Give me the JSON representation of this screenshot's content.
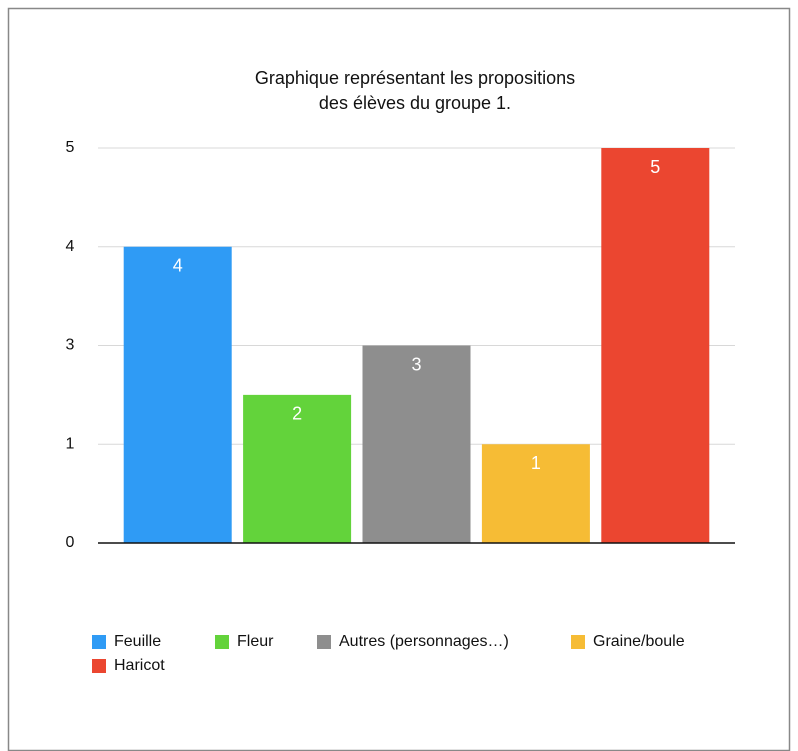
{
  "chart_data": {
    "type": "bar",
    "title": [
      "Graphique représentant les propositions",
      "des élèves du groupe 1."
    ],
    "categories": [
      "Feuille",
      "Fleur",
      "Autres (personnages…)",
      "Graine/boule",
      "Haricot"
    ],
    "values": [
      4,
      2,
      3,
      1,
      5
    ],
    "colors": [
      "#2f9bf5",
      "#63d33b",
      "#8e8e8e",
      "#f6bc35",
      "#eb4630"
    ],
    "ylim": [
      0,
      5
    ],
    "yticks": [
      0,
      1,
      3,
      4,
      5
    ],
    "grid": true,
    "legend": "bottom"
  }
}
